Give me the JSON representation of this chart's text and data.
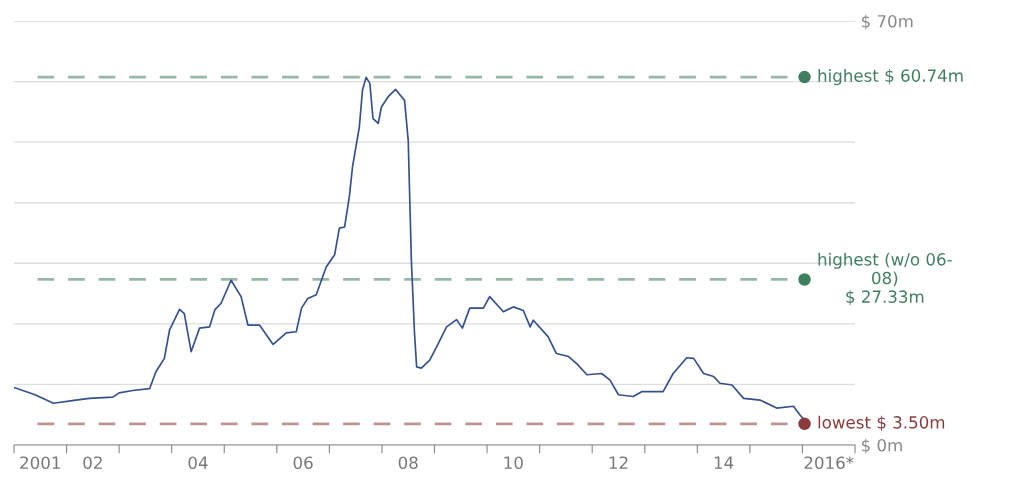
{
  "chart_data": {
    "type": "line",
    "x": [
      2000.5,
      2000.9,
      2001.25,
      2001.68,
      2001.93,
      2002.38,
      2002.5,
      2002.76,
      2003.08,
      2003.2,
      2003.36,
      2003.46,
      2003.65,
      2003.74,
      2003.87,
      2004.03,
      2004.22,
      2004.32,
      2004.44,
      2004.63,
      2004.82,
      2004.95,
      2005.17,
      2005.43,
      2005.68,
      2005.87,
      2005.97,
      2006.09,
      2006.25,
      2006.44,
      2006.6,
      2006.69,
      2006.79,
      2006.88,
      2006.94,
      2007.07,
      2007.13,
      2007.2,
      2007.27,
      2007.33,
      2007.43,
      2007.49,
      2007.62,
      2007.76,
      2007.93,
      2008.0,
      2008.06,
      2008.12,
      2008.16,
      2008.25,
      2008.41,
      2008.54,
      2008.73,
      2008.92,
      2009.03,
      2009.17,
      2009.43,
      2009.55,
      2009.81,
      2010.0,
      2010.19,
      2010.32,
      2010.38,
      2010.66,
      2010.82,
      2011.05,
      2011.21,
      2011.4,
      2011.68,
      2011.84,
      2012.0,
      2012.28,
      2012.44,
      2012.85,
      2013.04,
      2013.3,
      2013.43,
      2013.62,
      2013.81,
      2013.93,
      2014.16,
      2014.38,
      2014.7,
      2015.01,
      2015.33,
      2015.45,
      2015.6
    ],
    "series": [
      {
        "color": "#34508f",
        "values": [
          9.5,
          8.3,
          6.9,
          7.4,
          7.7,
          7.9,
          8.6,
          9.0,
          9.3,
          12.1,
          14.3,
          19.0,
          22.4,
          21.7,
          15.4,
          19.3,
          19.5,
          22.3,
          23.4,
          27.2,
          24.5,
          19.8,
          19.8,
          16.6,
          18.5,
          18.7,
          22.6,
          24.2,
          24.8,
          29.4,
          31.4,
          35.8,
          36.0,
          41.0,
          45.9,
          52.5,
          58.6,
          60.7,
          59.7,
          53.9,
          53.1,
          55.8,
          57.5,
          58.7,
          56.9,
          50.3,
          30.5,
          18.4,
          12.9,
          12.7,
          14.0,
          16.2,
          19.5,
          20.7,
          19.3,
          22.6,
          22.6,
          24.5,
          22.0,
          22.8,
          22.2,
          19.5,
          20.6,
          17.9,
          15.1,
          14.6,
          13.4,
          11.6,
          11.8,
          10.7,
          8.3,
          8.0,
          8.8,
          8.8,
          11.8,
          14.4,
          14.3,
          11.8,
          11.3,
          10.2,
          9.9,
          7.7,
          7.4,
          6.1,
          6.4,
          5.0,
          3.5
        ]
      }
    ],
    "xlim": [
      2000.5,
      2016.5
    ],
    "xticks": [
      {
        "value": 2000.5,
        "label": null
      },
      {
        "value": 2001.5,
        "label": null
      },
      {
        "value": 2002.5,
        "label": null
      },
      {
        "value": 2003.5,
        "label": null
      },
      {
        "value": 2004.5,
        "label": null
      },
      {
        "value": 2005.5,
        "label": null
      },
      {
        "value": 2006.5,
        "label": null
      },
      {
        "value": 2007.5,
        "label": null
      },
      {
        "value": 2008.5,
        "label": null
      },
      {
        "value": 2009.5,
        "label": null
      },
      {
        "value": 2010.5,
        "label": null
      },
      {
        "value": 2011.5,
        "label": null
      },
      {
        "value": 2012.5,
        "label": null
      },
      {
        "value": 2013.5,
        "label": null
      },
      {
        "value": 2014.5,
        "label": null
      },
      {
        "value": 2015.5,
        "label": null
      },
      {
        "value": 2016.5,
        "label": null
      },
      {
        "value": 2001,
        "label": "2001"
      },
      {
        "value": 2002,
        "label": "02"
      },
      {
        "value": 2004,
        "label": "04"
      },
      {
        "value": 2006,
        "label": "06"
      },
      {
        "value": 2008,
        "label": "08"
      },
      {
        "value": 2010,
        "label": "10"
      },
      {
        "value": 2012,
        "label": "12"
      },
      {
        "value": 2014,
        "label": "14"
      },
      {
        "value": 2016,
        "label": "2016*"
      }
    ],
    "ylim": [
      0,
      70
    ],
    "yticks": [
      {
        "value": 0,
        "label": "$ 0m"
      },
      {
        "value": 10,
        "label": null
      },
      {
        "value": 20,
        "label": null
      },
      {
        "value": 30,
        "label": null
      },
      {
        "value": 40,
        "label": null
      },
      {
        "value": 50,
        "label": null
      },
      {
        "value": 60,
        "label": null
      },
      {
        "value": 70,
        "label": "$ 70m"
      }
    ],
    "grid": "y",
    "line_style": "solid",
    "ref_lines": [
      {
        "axis": "y",
        "value": 60.74,
        "label": "highest $ 60.74m",
        "color": "#3f7f5f",
        "line_style": "dashed"
      },
      {
        "axis": "y",
        "value": 27.33,
        "label": "highest (w/o 06-\n08)\n$ 27.33m",
        "color": "#3f7f5f",
        "line_style": "dashed"
      },
      {
        "axis": "y",
        "value": 3.5,
        "label": "lowest $ 3.50m",
        "color": "#8b3a3a",
        "line_style": "dashed"
      }
    ]
  }
}
